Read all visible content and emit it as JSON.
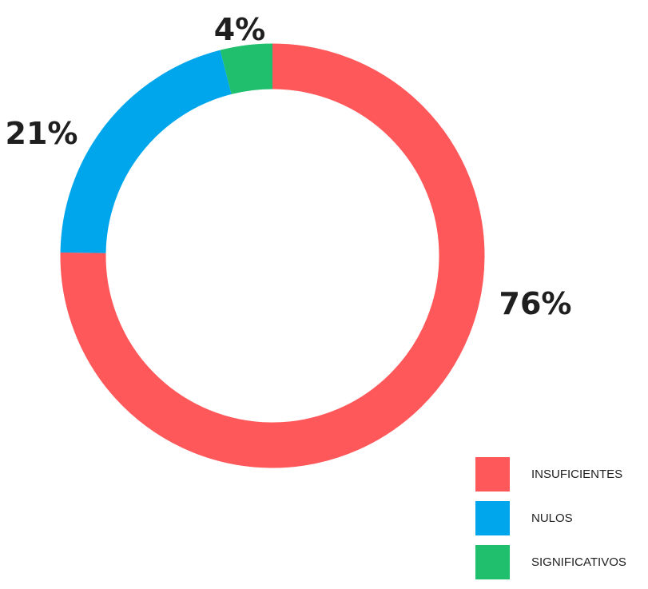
{
  "chart_data": {
    "type": "pie",
    "style": "donut",
    "categories": [
      "INSUFICIENTES",
      "NULOS",
      "SIGNIFICATIVOS"
    ],
    "values": [
      76,
      21,
      4
    ],
    "labels": [
      "76%",
      "21%",
      "4%"
    ],
    "colors": [
      "#ff585a",
      "#00a6ec",
      "#1fbf6e"
    ],
    "legend_position": "bottom-right",
    "title": ""
  }
}
